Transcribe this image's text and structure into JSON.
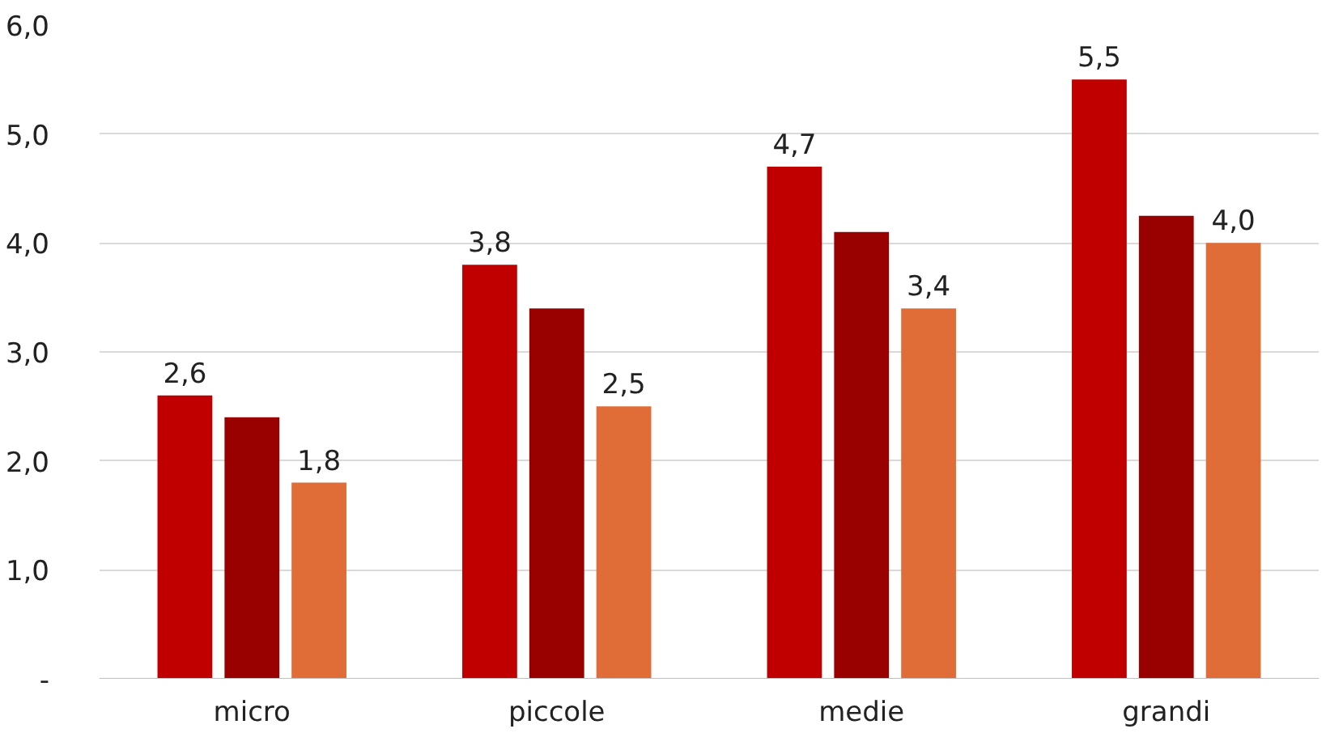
{
  "chart_data": {
    "type": "bar",
    "categories": [
      "micro",
      "piccole",
      "medie",
      "grandi"
    ],
    "series": [
      {
        "color": "#c00000",
        "values": [
          2.6,
          3.8,
          4.7,
          5.5
        ],
        "value_labels": [
          "2,6",
          "3,8",
          "4,7",
          "5,5"
        ]
      },
      {
        "color": "#990000",
        "values": [
          2.4,
          3.4,
          4.1,
          4.25
        ],
        "value_labels": [
          null,
          null,
          null,
          null
        ]
      },
      {
        "color": "#e06c38",
        "values": [
          1.8,
          2.5,
          3.4,
          4.0
        ],
        "value_labels": [
          "1,8",
          "2,5",
          "3,4",
          "4,0"
        ]
      }
    ],
    "ylim": [
      0,
      6
    ],
    "yticks": [
      {
        "value": 0,
        "label": "-"
      },
      {
        "value": 1,
        "label": "1,0"
      },
      {
        "value": 2,
        "label": "2,0"
      },
      {
        "value": 3,
        "label": "3,0"
      },
      {
        "value": 4,
        "label": "4,0"
      },
      {
        "value": 5,
        "label": "5,0"
      },
      {
        "value": 6,
        "label": "6,0"
      }
    ],
    "grid": "y"
  }
}
